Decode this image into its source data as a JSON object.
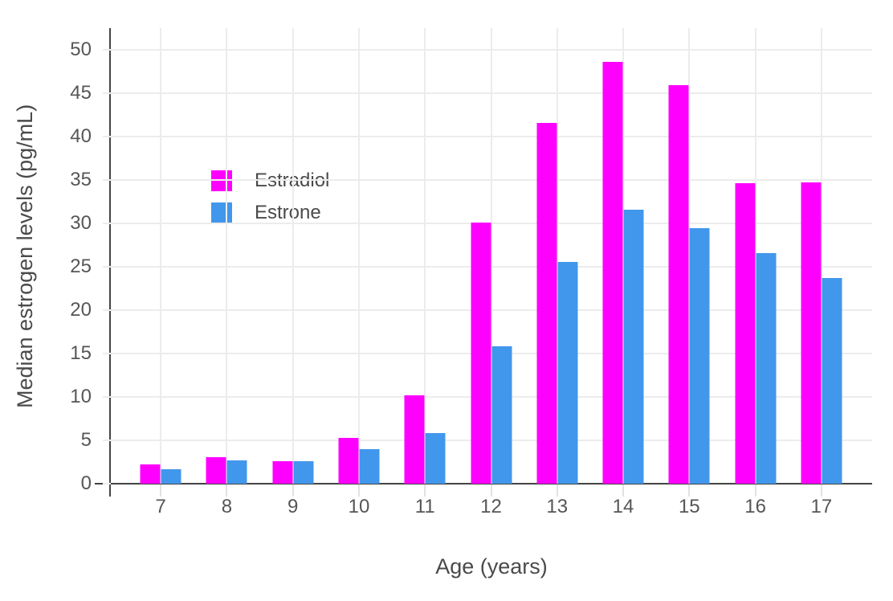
{
  "chart_data": {
    "type": "bar",
    "title": "",
    "xlabel": "Age (years)",
    "ylabel": "Median estrogen levels (pg/mL)",
    "categories": [
      "7",
      "8",
      "9",
      "10",
      "11",
      "12",
      "13",
      "14",
      "15",
      "16",
      "17"
    ],
    "series": [
      {
        "name": "Estradiol",
        "color": "#fe00fe",
        "values": [
          2.2,
          3.1,
          2.6,
          5.3,
          10.2,
          30.1,
          41.6,
          48.6,
          45.9,
          34.6,
          34.7
        ]
      },
      {
        "name": "Estrone",
        "color": "#4197eb",
        "values": [
          1.7,
          2.7,
          2.6,
          4.0,
          5.8,
          15.8,
          25.6,
          31.6,
          29.4,
          26.6,
          23.7
        ]
      }
    ],
    "ylim": [
      0,
      52.5
    ],
    "yticks": [
      0,
      5,
      10,
      15,
      20,
      25,
      30,
      35,
      40,
      45,
      50
    ],
    "grid": true,
    "legend_position": "inside-top-left",
    "grid_color": "#ececec",
    "axis_line_color": "#444444",
    "tick_label_color": "#565656",
    "title_color": "#4a4a4a",
    "background_color": "#ffffff"
  }
}
